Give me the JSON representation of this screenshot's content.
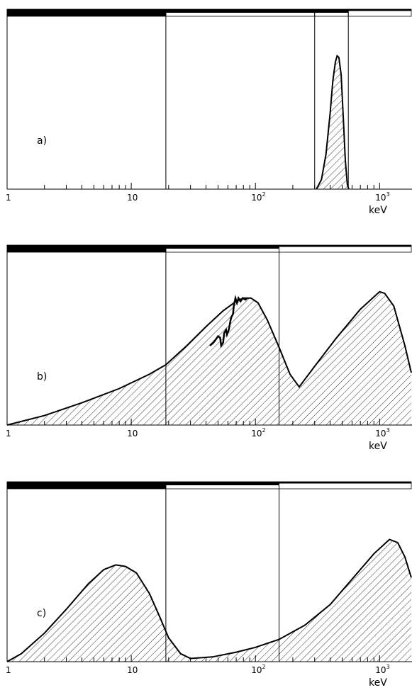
{
  "chart_data": [
    {
      "type": "area",
      "panel_label": "a)",
      "x_scale": "log",
      "xlim": [
        1,
        1800
      ],
      "xlabel": "keV",
      "x_tick_labels": [
        {
          "x": 1,
          "label": "1"
        },
        {
          "x": 10,
          "label": "10"
        },
        {
          "x": 100,
          "label": "10",
          "sup": "2"
        },
        {
          "x": 1000,
          "label": "10",
          "sup": "3"
        }
      ],
      "ylim": [
        0,
        1
      ],
      "band_boundaries": [
        19,
        300,
        560
      ],
      "bands": [
        {
          "from": 1,
          "to": 19,
          "style": "thick"
        },
        {
          "from": 19,
          "to": 300,
          "style": "medium"
        },
        {
          "from": 300,
          "to": 560,
          "style": "medium"
        },
        {
          "from": 560,
          "to": 1800,
          "style": "thin"
        }
      ],
      "fill": "hatched",
      "points": [
        [
          310,
          0.0
        ],
        [
          340,
          0.06
        ],
        [
          370,
          0.22
        ],
        [
          400,
          0.48
        ],
        [
          420,
          0.68
        ],
        [
          440,
          0.8
        ],
        [
          455,
          0.84
        ],
        [
          470,
          0.83
        ],
        [
          490,
          0.72
        ],
        [
          510,
          0.45
        ],
        [
          530,
          0.18
        ],
        [
          550,
          0.03
        ],
        [
          565,
          0.0
        ]
      ]
    },
    {
      "type": "area",
      "panel_label": "b)",
      "x_scale": "log",
      "xlim": [
        1,
        1800
      ],
      "xlabel": "keV",
      "x_tick_labels": [
        {
          "x": 1,
          "label": "1"
        },
        {
          "x": 10,
          "label": "10"
        },
        {
          "x": 100,
          "label": "10",
          "sup": "2"
        },
        {
          "x": 1000,
          "label": "10",
          "sup": "3"
        }
      ],
      "ylim": [
        0,
        1
      ],
      "band_boundaries": [
        19,
        155
      ],
      "bands": [
        {
          "from": 1,
          "to": 19,
          "style": "thick"
        },
        {
          "from": 19,
          "to": 155,
          "style": "medium"
        },
        {
          "from": 155,
          "to": 1800,
          "style": "thin"
        }
      ],
      "fill": "hatched",
      "points": [
        [
          1,
          0.0
        ],
        [
          2,
          0.06
        ],
        [
          4,
          0.14
        ],
        [
          8,
          0.23
        ],
        [
          14,
          0.32
        ],
        [
          19,
          0.38
        ],
        [
          28,
          0.5
        ],
        [
          40,
          0.62
        ],
        [
          55,
          0.72
        ],
        [
          70,
          0.78
        ],
        [
          80,
          0.8
        ],
        [
          92,
          0.8
        ],
        [
          105,
          0.77
        ],
        [
          125,
          0.66
        ],
        [
          155,
          0.49
        ],
        [
          190,
          0.32
        ],
        [
          225,
          0.24
        ],
        [
          300,
          0.37
        ],
        [
          450,
          0.55
        ],
        [
          700,
          0.73
        ],
        [
          1000,
          0.84
        ],
        [
          1100,
          0.83
        ],
        [
          1300,
          0.75
        ],
        [
          1600,
          0.5
        ],
        [
          1800,
          0.33
        ]
      ],
      "measured_points": [
        [
          43,
          0.5
        ],
        [
          46,
          0.52
        ],
        [
          48,
          0.54
        ],
        [
          50,
          0.56
        ],
        [
          52,
          0.55
        ],
        [
          53,
          0.5
        ],
        [
          55,
          0.52
        ],
        [
          56,
          0.58
        ],
        [
          58,
          0.6
        ],
        [
          59,
          0.57
        ],
        [
          61,
          0.6
        ],
        [
          63,
          0.66
        ],
        [
          64,
          0.68
        ],
        [
          66,
          0.7
        ],
        [
          67,
          0.75
        ],
        [
          69,
          0.8
        ],
        [
          71,
          0.77
        ],
        [
          73,
          0.8
        ],
        [
          76,
          0.78
        ],
        [
          79,
          0.8
        ],
        [
          83,
          0.79
        ],
        [
          86,
          0.8
        ]
      ]
    },
    {
      "type": "area",
      "panel_label": "c)",
      "x_scale": "log",
      "xlim": [
        1,
        1800
      ],
      "xlabel": "keV",
      "x_tick_labels": [
        {
          "x": 1,
          "label": "1"
        },
        {
          "x": 10,
          "label": "10"
        },
        {
          "x": 100,
          "label": "10",
          "sup": "2"
        },
        {
          "x": 1000,
          "label": "10",
          "sup": "3"
        }
      ],
      "ylim": [
        0,
        1
      ],
      "band_boundaries": [
        19,
        155
      ],
      "bands": [
        {
          "from": 1,
          "to": 19,
          "style": "thick"
        },
        {
          "from": 19,
          "to": 155,
          "style": "medium"
        },
        {
          "from": 155,
          "to": 1800,
          "style": "thin"
        }
      ],
      "fill": "hatched",
      "points": [
        [
          1,
          0.0
        ],
        [
          1.3,
          0.05
        ],
        [
          2,
          0.18
        ],
        [
          3,
          0.33
        ],
        [
          4.5,
          0.49
        ],
        [
          6,
          0.58
        ],
        [
          7.5,
          0.61
        ],
        [
          9,
          0.6
        ],
        [
          11,
          0.56
        ],
        [
          14,
          0.43
        ],
        [
          17,
          0.28
        ],
        [
          20,
          0.15
        ],
        [
          25,
          0.05
        ],
        [
          30,
          0.02
        ],
        [
          45,
          0.03
        ],
        [
          70,
          0.06
        ],
        [
          100,
          0.09
        ],
        [
          155,
          0.14
        ],
        [
          250,
          0.23
        ],
        [
          400,
          0.36
        ],
        [
          600,
          0.52
        ],
        [
          900,
          0.68
        ],
        [
          1200,
          0.77
        ],
        [
          1400,
          0.75
        ],
        [
          1600,
          0.66
        ],
        [
          1800,
          0.53
        ]
      ]
    }
  ]
}
